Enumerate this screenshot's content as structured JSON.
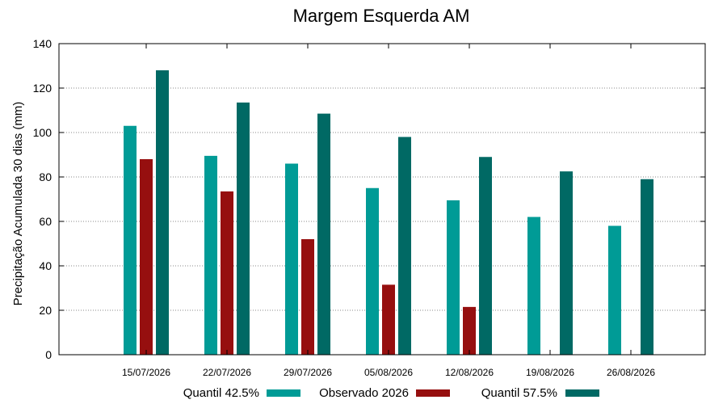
{
  "chart_data": {
    "type": "bar",
    "title": "Margem Esquerda AM",
    "xlabel": "",
    "ylabel": "Precipitação Acumulada 30 dias (mm)",
    "ylim": [
      0,
      140
    ],
    "yticks": [
      0,
      20,
      40,
      60,
      80,
      100,
      120,
      140
    ],
    "grid": true,
    "legend_position": "bottom",
    "categories": [
      "15/07/2026",
      "22/07/2026",
      "29/07/2026",
      "05/08/2026",
      "12/08/2026",
      "19/08/2026",
      "26/08/2026"
    ],
    "series": [
      {
        "name": "Quantil 42.5%",
        "color": "#009b96",
        "values": [
          103,
          89.5,
          86,
          75,
          69.5,
          62,
          58
        ]
      },
      {
        "name": "Observado 2026",
        "color": "#960f0f",
        "values": [
          88,
          73.5,
          52,
          31.5,
          21.5,
          null,
          null
        ]
      },
      {
        "name": "Quantil 57.5%",
        "color": "#006964",
        "values": [
          128,
          113.5,
          108.5,
          98,
          89,
          82.5,
          79
        ]
      }
    ]
  }
}
